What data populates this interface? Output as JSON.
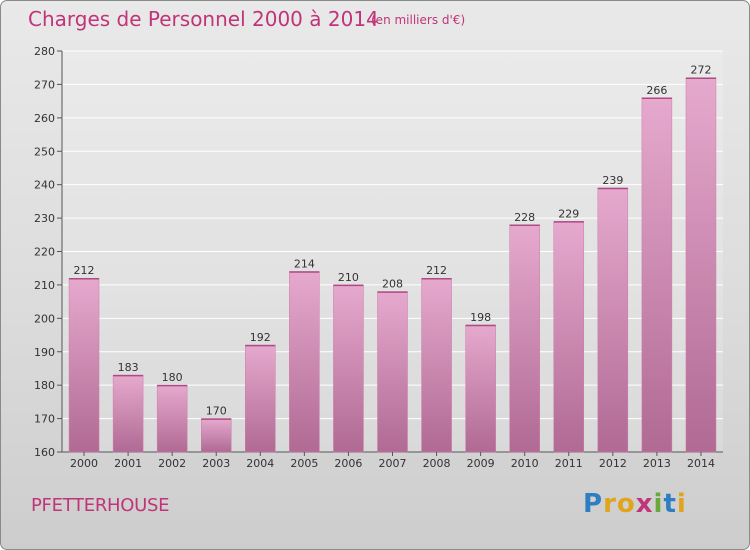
{
  "header": {
    "title": "Charges de Personnel 2000 à 2014",
    "subtitle": "(en milliers d'€)"
  },
  "footer": {
    "commune": "PFETTERHOUSE",
    "logo": {
      "text": "Proxiti",
      "letters": [
        {
          "char": "P",
          "color": "#2e7fc1"
        },
        {
          "char": "r",
          "color": "#e0a51c"
        },
        {
          "char": "o",
          "color": "#e0a51c"
        },
        {
          "char": "x",
          "color": "#c0347a"
        },
        {
          "char": "i",
          "color": "#6aa83a"
        },
        {
          "char": "t",
          "color": "#2e7fc1"
        },
        {
          "char": "i",
          "color": "#e0a51c"
        }
      ]
    }
  },
  "colors": {
    "accent": "#c0347a",
    "bar_top": "#e6a9ce",
    "bar_bottom": "#b06a93"
  },
  "chart_data": {
    "type": "bar",
    "title": "Charges de Personnel 2000 à 2014",
    "subtitle": "(en milliers d'€)",
    "categories": [
      "2000",
      "2001",
      "2002",
      "2003",
      "2004",
      "2005",
      "2006",
      "2007",
      "2008",
      "2009",
      "2010",
      "2011",
      "2012",
      "2013",
      "2014"
    ],
    "values": [
      212,
      183,
      180,
      170,
      192,
      214,
      210,
      208,
      212,
      198,
      228,
      229,
      239,
      266,
      272
    ],
    "ylim": [
      160,
      280
    ],
    "yticks": [
      160,
      170,
      180,
      190,
      200,
      210,
      220,
      230,
      240,
      250,
      260,
      270,
      280
    ],
    "grid": true,
    "data_labels": true
  }
}
